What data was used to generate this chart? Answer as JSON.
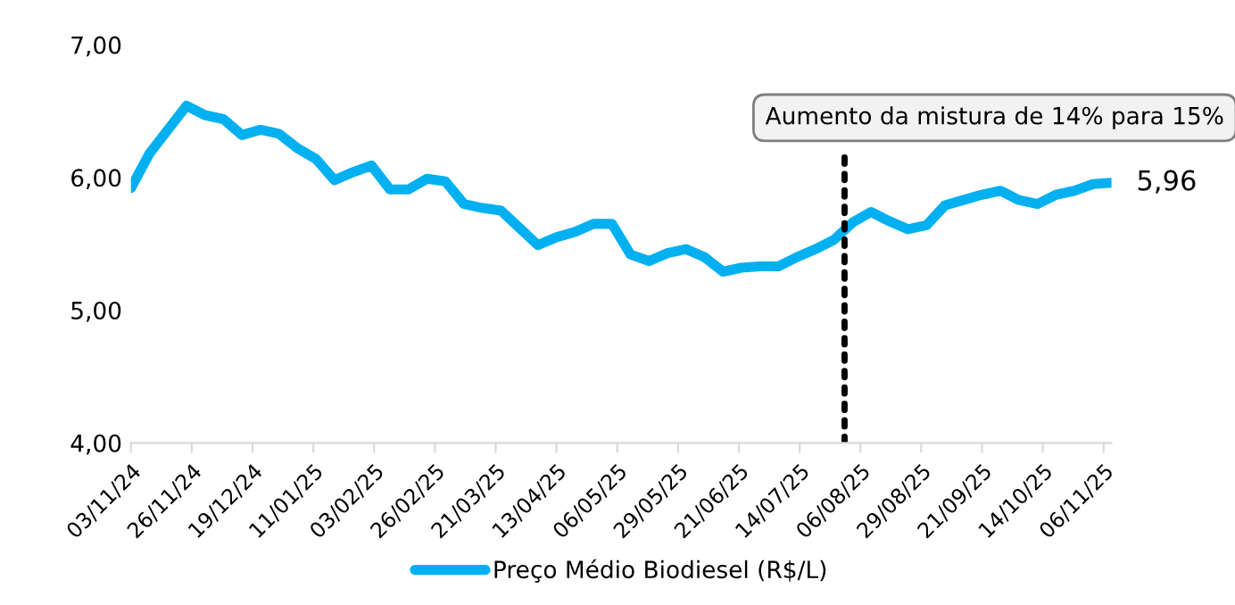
{
  "chart_data": {
    "type": "line",
    "x": [
      "2024-11-03",
      "2024-11-10",
      "2024-11-17",
      "2024-11-24",
      "2024-12-01",
      "2024-12-08",
      "2024-12-15",
      "2024-12-22",
      "2024-12-29",
      "2025-01-05",
      "2025-01-12",
      "2025-01-19",
      "2025-01-26",
      "2025-02-02",
      "2025-02-09",
      "2025-02-16",
      "2025-02-23",
      "2025-03-02",
      "2025-03-09",
      "2025-03-16",
      "2025-03-23",
      "2025-03-30",
      "2025-04-06",
      "2025-04-13",
      "2025-04-20",
      "2025-04-27",
      "2025-05-04",
      "2025-05-11",
      "2025-05-18",
      "2025-05-25",
      "2025-06-01",
      "2025-06-08",
      "2025-06-15",
      "2025-06-22",
      "2025-06-29",
      "2025-07-06",
      "2025-07-13",
      "2025-07-20",
      "2025-07-27",
      "2025-08-03",
      "2025-08-10",
      "2025-08-17",
      "2025-08-24",
      "2025-08-31",
      "2025-09-07",
      "2025-09-14",
      "2025-09-21",
      "2025-09-28",
      "2025-10-05",
      "2025-10-12",
      "2025-10-19",
      "2025-10-26",
      "2025-11-02",
      "2025-11-09"
    ],
    "series": [
      {
        "name": "Preço Médio Biodiesel (R$/L)",
        "color": "#00b0f0",
        "values": [
          5.92,
          6.18,
          6.36,
          6.54,
          6.47,
          6.44,
          6.32,
          6.36,
          6.33,
          6.22,
          6.14,
          5.98,
          6.04,
          6.09,
          5.91,
          5.91,
          5.99,
          5.97,
          5.8,
          5.77,
          5.75,
          5.62,
          5.49,
          5.55,
          5.59,
          5.65,
          5.65,
          5.42,
          5.37,
          5.43,
          5.46,
          5.4,
          5.29,
          5.32,
          5.33,
          5.33,
          5.4,
          5.46,
          5.53,
          5.66,
          5.74,
          5.67,
          5.61,
          5.64,
          5.79,
          5.83,
          5.87,
          5.9,
          5.83,
          5.8,
          5.87,
          5.9,
          5.95,
          5.96
        ]
      }
    ],
    "xlim": [
      "2024-11-03",
      "2025-11-09"
    ],
    "xticks": [
      {
        "value": "2024-11-03",
        "label": "03/11/24"
      },
      {
        "value": "2024-11-26",
        "label": "26/11/24"
      },
      {
        "value": "2024-12-19",
        "label": "19/12/24"
      },
      {
        "value": "2025-01-11",
        "label": "11/01/25"
      },
      {
        "value": "2025-02-03",
        "label": "03/02/25"
      },
      {
        "value": "2025-02-26",
        "label": "26/02/25"
      },
      {
        "value": "2025-03-21",
        "label": "21/03/25"
      },
      {
        "value": "2025-04-13",
        "label": "13/04/25"
      },
      {
        "value": "2025-05-06",
        "label": "06/05/25"
      },
      {
        "value": "2025-05-29",
        "label": "29/05/25"
      },
      {
        "value": "2025-06-21",
        "label": "21/06/25"
      },
      {
        "value": "2025-07-14",
        "label": "14/07/25"
      },
      {
        "value": "2025-08-06",
        "label": "06/08/25"
      },
      {
        "value": "2025-08-29",
        "label": "29/08/25"
      },
      {
        "value": "2025-09-21",
        "label": "21/09/25"
      },
      {
        "value": "2025-10-14",
        "label": "14/10/25"
      },
      {
        "value": "2025-11-06",
        "label": "06/11/25"
      }
    ],
    "ylim": [
      4,
      7
    ],
    "yticks": [
      {
        "value": 4,
        "label": "4,00"
      },
      {
        "value": 5,
        "label": "5,00"
      },
      {
        "value": 6,
        "label": "6,00"
      },
      {
        "value": 7,
        "label": "7,00"
      }
    ],
    "ref_lines": [
      {
        "axis": "x",
        "value": "2025-07-31",
        "label": "Aumento da mistura de 14% para 15%",
        "color": "#000000",
        "line_style": "dotted"
      }
    ],
    "annotations": [
      {
        "text": "5,96",
        "x": "2025-11-09",
        "y": 5.96
      }
    ],
    "grid": false,
    "legend": "bottom",
    "marker": "none",
    "line_style": "solid"
  }
}
